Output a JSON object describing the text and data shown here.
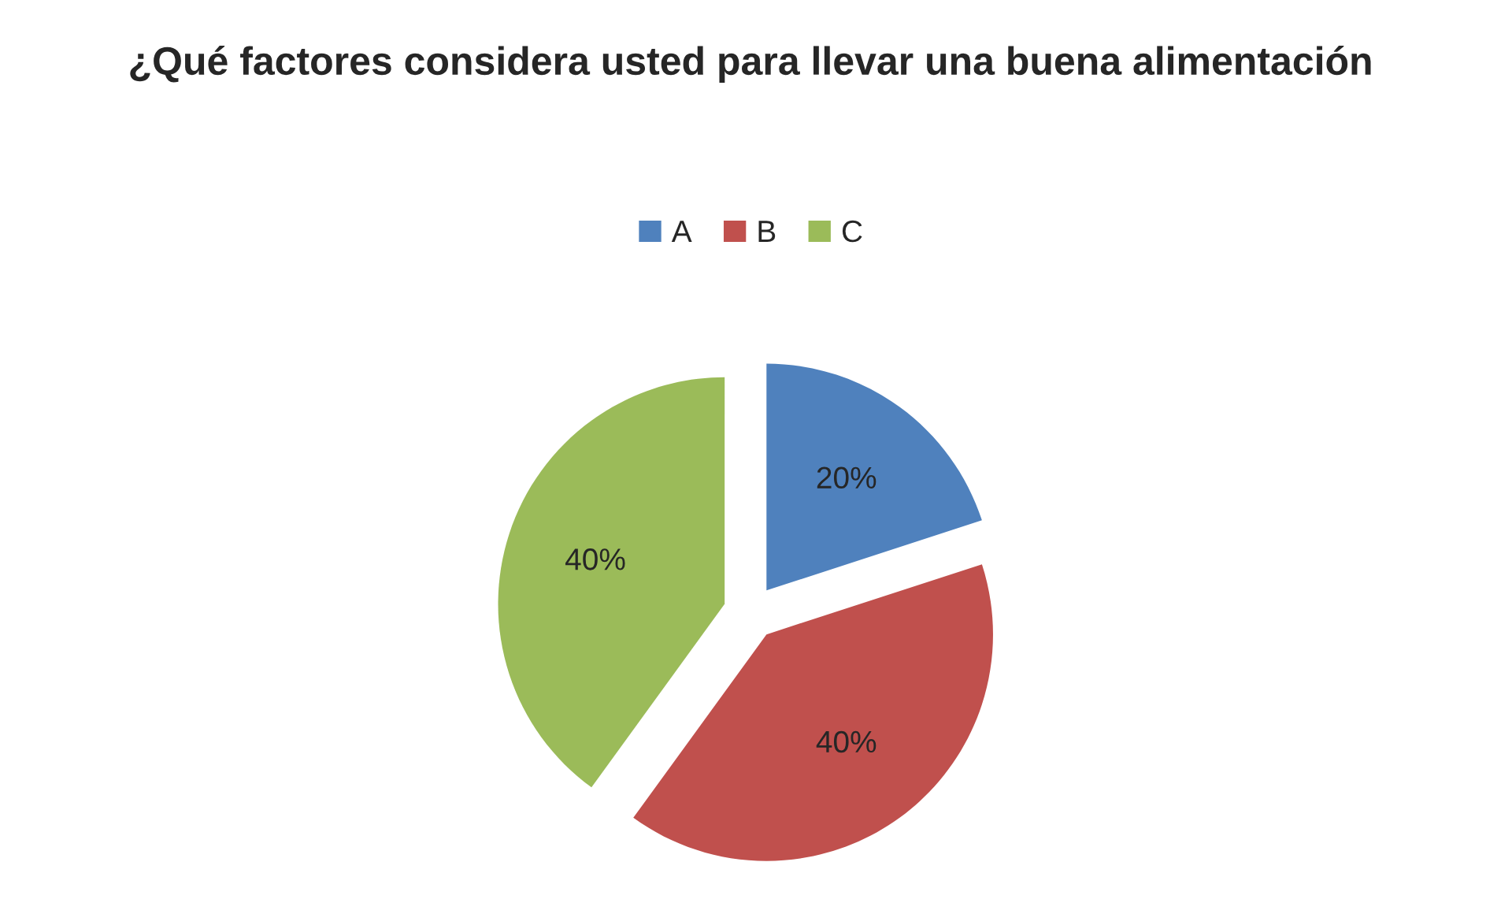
{
  "chart_data": {
    "type": "pie",
    "title": "¿Qué factores considera usted para llevar una buena alimentación",
    "categories": [
      "A",
      "B",
      "C"
    ],
    "values": [
      20,
      40,
      40
    ],
    "colors": [
      "#4f81bd",
      "#c0504d",
      "#9bbb59"
    ],
    "value_labels": [
      "20%",
      "40%",
      "40%"
    ],
    "legend": "top"
  }
}
